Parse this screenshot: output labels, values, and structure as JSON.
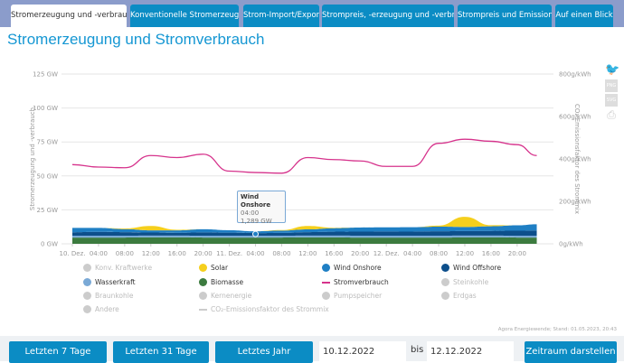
{
  "tabs": [
    {
      "label": "Stromerzeugung und -verbrauch",
      "active": true
    },
    {
      "label": "Konventionelle Stromerzeugung"
    },
    {
      "label": "Strom-Import/Export"
    },
    {
      "label": "Strompreis, -erzeugung und -verbrauch"
    },
    {
      "label": "Strompreis und Emissionen"
    },
    {
      "label": "Auf einen Blick"
    }
  ],
  "page_title": "Stromerzeugung und Stromverbrauch",
  "icons": {
    "twitter": "twitter-icon",
    "png": "PNG",
    "svg": "SVG",
    "print": "print-icon"
  },
  "tooltip": {
    "series": "Wind Onshore",
    "time": "04:00",
    "value": "1,289 GW"
  },
  "legend": [
    {
      "label": "Konv. Kraftwerke",
      "color": "#cccccc",
      "active": false,
      "kind": "dot"
    },
    {
      "label": "Solar",
      "color": "#f5cf1d",
      "active": true,
      "kind": "dot"
    },
    {
      "label": "Wind Onshore",
      "color": "#1f7fc4",
      "active": true,
      "kind": "dot"
    },
    {
      "label": "Wind Offshore",
      "color": "#0d4f8b",
      "active": true,
      "kind": "dot"
    },
    {
      "label": "Wasserkraft",
      "color": "#7aa9d6",
      "active": true,
      "kind": "dot"
    },
    {
      "label": "Biomasse",
      "color": "#3c7b3f",
      "active": true,
      "kind": "dot"
    },
    {
      "label": "Stromverbrauch",
      "color": "#d6338c",
      "active": true,
      "kind": "line"
    },
    {
      "label": "Steinkohle",
      "color": "#cccccc",
      "active": false,
      "kind": "dot"
    },
    {
      "label": "Braunkohle",
      "color": "#cccccc",
      "active": false,
      "kind": "dot"
    },
    {
      "label": "Kernenergie",
      "color": "#cccccc",
      "active": false,
      "kind": "dot"
    },
    {
      "label": "Pumpspeicher",
      "color": "#cccccc",
      "active": false,
      "kind": "dot"
    },
    {
      "label": "Erdgas",
      "color": "#cccccc",
      "active": false,
      "kind": "dot"
    },
    {
      "label": "Andere",
      "color": "#cccccc",
      "active": false,
      "kind": "dot"
    },
    {
      "label": "CO₂-Emissionsfaktor des Strommix",
      "color": "#cccccc",
      "active": false,
      "kind": "line"
    }
  ],
  "chart_data": {
    "type": "area",
    "title": "Stromerzeugung und Stromverbrauch",
    "ylabel": "Stromerzeugung und -verbrauch",
    "ylabel_right": "CO₂-Emissionsfaktor des Strommix",
    "ylim": [
      0,
      125
    ],
    "ylim_right": [
      0,
      800
    ],
    "y_ticks": [
      "0 GW",
      "25 GW",
      "50 GW",
      "75 GW",
      "100 GW",
      "125 GW"
    ],
    "y_ticks_right": [
      "0g/kWh",
      "200g/kWh",
      "400g/kWh",
      "600g/kWh",
      "800g/kWh"
    ],
    "x_ticks": [
      "10. Dez.",
      "04:00",
      "08:00",
      "12:00",
      "16:00",
      "20:00",
      "11. Dez.",
      "04:00",
      "08:00",
      "12:00",
      "16:00",
      "20:00",
      "12. Dez.",
      "04:00",
      "08:00",
      "12:00",
      "16:00",
      "20:00"
    ],
    "x_hours": [
      0,
      4,
      8,
      12,
      16,
      20,
      24,
      28,
      32,
      36,
      40,
      44,
      48,
      52,
      56,
      60,
      64,
      68,
      71
    ],
    "stacked_series": [
      {
        "name": "Biomasse",
        "color": "#3c7b3f",
        "values": [
          4.6,
          4.6,
          4.6,
          4.7,
          4.7,
          4.6,
          4.6,
          4.6,
          4.6,
          4.7,
          4.7,
          4.6,
          4.6,
          4.6,
          4.6,
          4.7,
          4.7,
          4.6,
          4.6
        ]
      },
      {
        "name": "Wasserkraft",
        "color": "#7aa9d6",
        "values": [
          1.4,
          1.4,
          1.4,
          1.4,
          1.4,
          1.4,
          1.4,
          1.4,
          1.4,
          1.4,
          1.4,
          1.4,
          1.4,
          1.4,
          1.4,
          1.4,
          1.4,
          1.4,
          1.4
        ]
      },
      {
        "name": "Wind Offshore",
        "color": "#0d4f8b",
        "values": [
          2.5,
          2.8,
          2.6,
          2.2,
          2.0,
          2.4,
          2.2,
          1.9,
          2.1,
          2.5,
          2.8,
          3.0,
          3.1,
          3.0,
          3.2,
          3.3,
          3.4,
          3.6,
          3.8
        ]
      },
      {
        "name": "Wind Onshore",
        "color": "#1f7fc4",
        "values": [
          3.2,
          2.9,
          2.2,
          1.6,
          1.8,
          2.3,
          1.8,
          1.3,
          1.6,
          2.0,
          2.6,
          3.0,
          3.0,
          3.2,
          3.4,
          3.0,
          3.4,
          4.0,
          4.6
        ]
      },
      {
        "name": "Solar",
        "color": "#f5cf1d",
        "values": [
          0,
          0,
          0.5,
          3.2,
          0.4,
          0,
          0,
          0,
          0.4,
          2.5,
          0.3,
          0,
          0,
          0,
          0.8,
          7.5,
          0.8,
          0,
          0
        ]
      }
    ],
    "line_series": {
      "name": "Stromverbrauch",
      "color": "#d6338c",
      "values": [
        58.3,
        56.5,
        56,
        65,
        63.5,
        66,
        53.5,
        52.5,
        52,
        63.5,
        62,
        61,
        57,
        57,
        74,
        77,
        75.5,
        73,
        65
      ]
    }
  },
  "credit": "Agora Energiewende; Stand: 01.05.2023, 20:43",
  "controls": {
    "last7": "Letzten 7 Tage",
    "last31": "Letzten 31 Tage",
    "lastYear": "Letztes Jahr",
    "from": "10.12.2022",
    "bis": "bis",
    "to": "12.12.2022",
    "show": "Zeitraum darstellen"
  }
}
